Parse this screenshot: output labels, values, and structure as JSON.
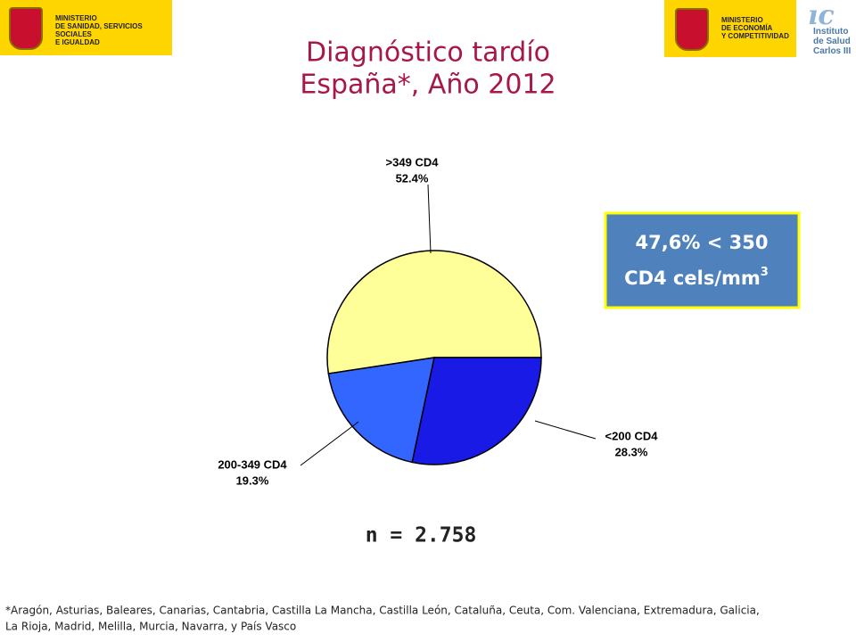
{
  "header": {
    "ministry_health": "MINISTERIO\nDE SANIDAD, SERVICIOS SOCIALES\nE IGUALDAD",
    "ministry_economy": "MINISTERIO\nDE ECONOMÍA\nY COMPETITIVIDAD",
    "institute": "Instituto\nde Salud\nCarlos III"
  },
  "chart_data": {
    "type": "pie",
    "title": [
      "Diagnóstico tardío",
      "España*, Año 2012"
    ],
    "categories": [
      ">349 CD4",
      "200-349 CD4",
      "<200 CD4"
    ],
    "values": [
      52.4,
      19.3,
      28.3
    ],
    "value_labels": [
      "52.4%",
      "19.3%",
      "28.3%"
    ],
    "colors": [
      "#ffff99",
      "#3366ff",
      "#1a1ae6"
    ],
    "annotation": {
      "line1": "47,6% < 350",
      "line2": "CD4 cels/mm",
      "superscript": "3"
    },
    "sample_size": "n = 2.758"
  },
  "footnote": [
    "*Aragón, Asturias, Baleares, Canarias, Cantabria, Castilla La Mancha, Castilla León, Cataluña, Ceuta, Com. Valenciana, Extremadura, Galicia,",
    "La Rioja, Madrid,  Melilla, Murcia, Navarra, y País Vasco"
  ]
}
